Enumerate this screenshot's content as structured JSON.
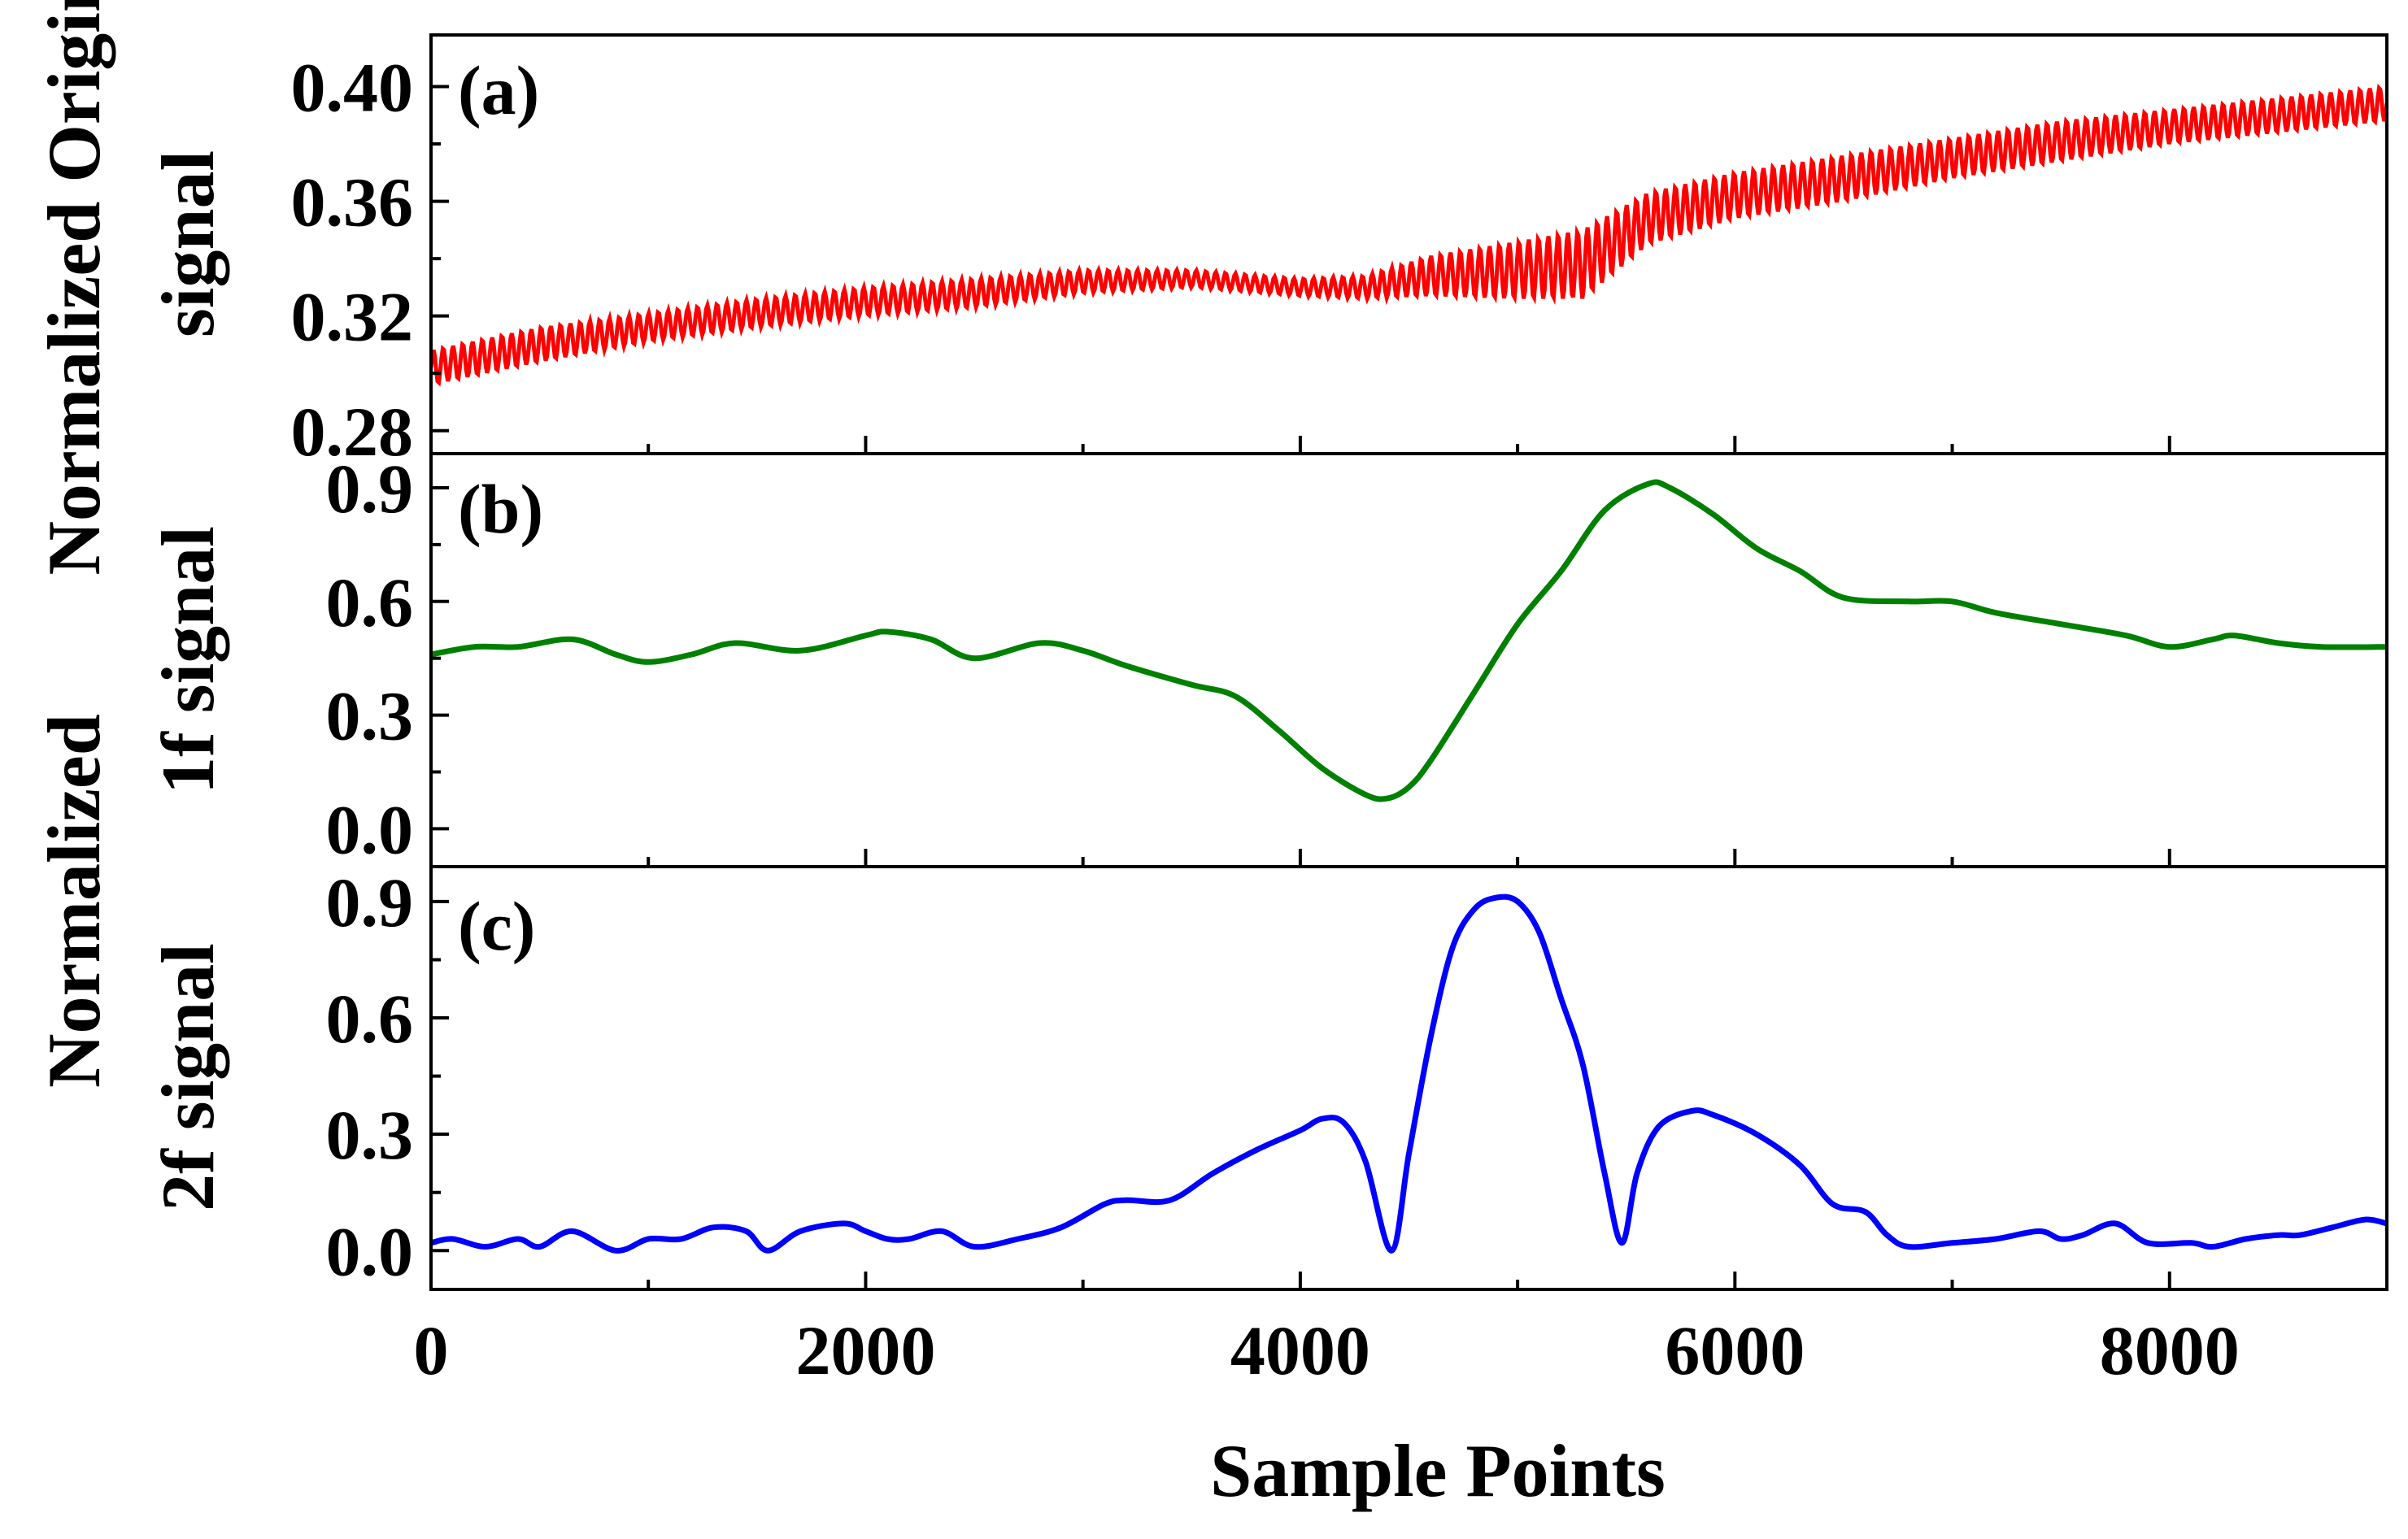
{
  "chart_data": {
    "type": "line",
    "x_axis": {
      "label": "Sample Points",
      "range": [
        0,
        9000
      ],
      "ticks": [
        0,
        2000,
        4000,
        6000,
        8000
      ],
      "tick_labels": [
        "0",
        "2000",
        "4000",
        "6000",
        "8000"
      ],
      "minor_ticks": [
        1000,
        3000,
        5000,
        7000
      ]
    },
    "shared_ylabel": "Normalized",
    "grid": false,
    "panels": [
      {
        "id": "a",
        "label": "(a)",
        "ylabel": "Normalized Original",
        "ylabel2": "signal",
        "ylim": [
          0.272,
          0.418
        ],
        "yticks": [
          0.28,
          0.32,
          0.36,
          0.4
        ],
        "ytick_labels": [
          "0.28",
          "0.32",
          "0.36",
          "0.40"
        ],
        "color": "#ff0000",
        "oscillation": {
          "amplitude_note": "high-frequency ripple around trend",
          "period_samples": 45
        },
        "series": {
          "name": "Original signal",
          "x": [
            0,
            500,
            1000,
            1500,
            2000,
            2500,
            3000,
            3500,
            4000,
            4300,
            4600,
            5000,
            5300,
            5600,
            6000,
            6500,
            7000,
            7500,
            8000,
            8500,
            9000
          ],
          "trend": [
            0.302,
            0.31,
            0.316,
            0.321,
            0.325,
            0.328,
            0.332,
            0.333,
            0.33,
            0.33,
            0.334,
            0.336,
            0.338,
            0.354,
            0.362,
            0.368,
            0.375,
            0.381,
            0.386,
            0.39,
            0.394
          ],
          "ripple": [
            0.006,
            0.006,
            0.005,
            0.005,
            0.005,
            0.005,
            0.004,
            0.003,
            0.003,
            0.004,
            0.007,
            0.01,
            0.012,
            0.009,
            0.008,
            0.008,
            0.007,
            0.007,
            0.006,
            0.006,
            0.006
          ]
        }
      },
      {
        "id": "b",
        "label": "(b)",
        "ylabel": "1f signal",
        "ylim": [
          -0.1,
          0.99
        ],
        "yticks": [
          0.0,
          0.3,
          0.6,
          0.9
        ],
        "ytick_labels": [
          "0.0",
          "0.3",
          "0.6",
          "0.9"
        ],
        "color": "#008000",
        "series": {
          "name": "1f signal",
          "x": [
            0,
            200,
            400,
            650,
            850,
            1000,
            1200,
            1400,
            1700,
            2000,
            2100,
            2300,
            2500,
            2800,
            3000,
            3200,
            3500,
            3700,
            3900,
            4100,
            4300,
            4400,
            4500,
            4600,
            4800,
            5000,
            5200,
            5400,
            5600,
            5700,
            5900,
            6100,
            6300,
            6500,
            6800,
            7000,
            7200,
            7500,
            7800,
            8000,
            8200,
            8300,
            8500,
            8700,
            9000
          ],
          "y": [
            0.46,
            0.48,
            0.48,
            0.5,
            0.46,
            0.44,
            0.46,
            0.49,
            0.47,
            0.51,
            0.52,
            0.5,
            0.45,
            0.49,
            0.47,
            0.43,
            0.38,
            0.35,
            0.26,
            0.16,
            0.09,
            0.08,
            0.11,
            0.18,
            0.36,
            0.54,
            0.68,
            0.84,
            0.91,
            0.9,
            0.83,
            0.74,
            0.68,
            0.61,
            0.6,
            0.6,
            0.57,
            0.54,
            0.51,
            0.48,
            0.5,
            0.51,
            0.49,
            0.48,
            0.48
          ]
        }
      },
      {
        "id": "c",
        "label": "(c)",
        "ylabel": "2f signal",
        "ylim": [
          -0.1,
          0.99
        ],
        "yticks": [
          0.0,
          0.3,
          0.6,
          0.9
        ],
        "ytick_labels": [
          "0.0",
          "0.3",
          "0.6",
          "0.9"
        ],
        "color": "#0000ff",
        "series": {
          "name": "2f signal",
          "x": [
            0,
            100,
            250,
            400,
            500,
            650,
            850,
            1000,
            1150,
            1300,
            1450,
            1550,
            1700,
            1900,
            2000,
            2100,
            2200,
            2350,
            2500,
            2700,
            2900,
            3100,
            3200,
            3400,
            3600,
            3800,
            4000,
            4100,
            4200,
            4300,
            4420,
            4500,
            4600,
            4700,
            4800,
            4900,
            5000,
            5100,
            5200,
            5300,
            5400,
            5480,
            5550,
            5650,
            5800,
            5900,
            6100,
            6300,
            6450,
            6600,
            6700,
            6800,
            7000,
            7200,
            7400,
            7500,
            7600,
            7750,
            7900,
            8100,
            8200,
            8350,
            8500,
            8600,
            8750,
            8900,
            9000
          ],
          "y": [
            0.02,
            0.03,
            0.01,
            0.03,
            0.01,
            0.05,
            0.0,
            0.03,
            0.03,
            0.06,
            0.05,
            0.0,
            0.05,
            0.07,
            0.05,
            0.03,
            0.03,
            0.05,
            0.01,
            0.03,
            0.06,
            0.12,
            0.13,
            0.13,
            0.2,
            0.26,
            0.31,
            0.34,
            0.33,
            0.23,
            0.0,
            0.25,
            0.55,
            0.78,
            0.88,
            0.91,
            0.9,
            0.82,
            0.65,
            0.48,
            0.2,
            0.02,
            0.2,
            0.32,
            0.36,
            0.35,
            0.3,
            0.22,
            0.12,
            0.1,
            0.04,
            0.01,
            0.02,
            0.03,
            0.05,
            0.03,
            0.04,
            0.07,
            0.02,
            0.02,
            0.01,
            0.03,
            0.04,
            0.04,
            0.06,
            0.08,
            0.07
          ]
        }
      }
    ]
  }
}
